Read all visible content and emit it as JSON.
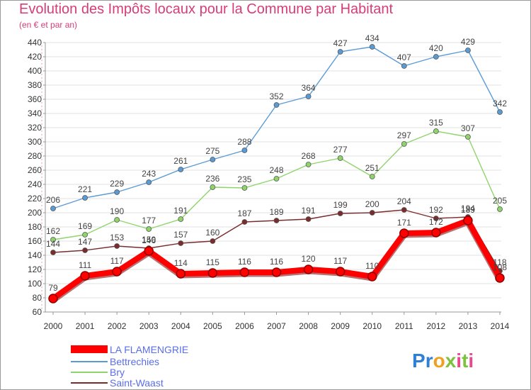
{
  "title": "Evolution des Impôts locaux pour la Commune par Habitant",
  "subtitle": "(en € et par an)",
  "logo": {
    "text": "Proxiti",
    "colors": [
      "#2f7fd4",
      "#f0a020",
      "#7cc240",
      "#e64a8c"
    ]
  },
  "chart_data": {
    "type": "line",
    "title": "Evolution des Impôts locaux pour la Commune par Habitant",
    "subtitle": "(en € et par an)",
    "x": [
      2000,
      2001,
      2002,
      2003,
      2004,
      2005,
      2006,
      2007,
      2008,
      2009,
      2010,
      2011,
      2012,
      2013,
      2014
    ],
    "ylim": [
      60,
      440
    ],
    "yticks": [
      60,
      80,
      100,
      120,
      140,
      160,
      180,
      200,
      220,
      240,
      260,
      280,
      300,
      320,
      340,
      360,
      380,
      400,
      420,
      440
    ],
    "grid": "horizontal",
    "legend_position": "bottom-left",
    "series": [
      {
        "name": "LA FLAMENGRIE",
        "color": "#ff0000",
        "values": [
          79,
          111,
          117,
          146,
          114,
          115,
          116,
          116,
          120,
          117,
          110,
          171,
          172,
          189,
          108
        ]
      },
      {
        "name": "Bettrechies",
        "color": "#5b9bd5",
        "values": [
          206,
          221,
          229,
          243,
          261,
          275,
          288,
          352,
          364,
          427,
          434,
          407,
          420,
          429,
          342
        ]
      },
      {
        "name": "Bry",
        "color": "#8fd46b",
        "values": [
          162,
          169,
          190,
          177,
          191,
          236,
          235,
          248,
          268,
          277,
          251,
          297,
          315,
          307,
          205
        ]
      },
      {
        "name": "Saint-Waast",
        "color": "#7a2c2c",
        "values": [
          144,
          147,
          153,
          150,
          157,
          160,
          187,
          189,
          191,
          199,
          200,
          204,
          192,
          194,
          118
        ]
      }
    ]
  }
}
